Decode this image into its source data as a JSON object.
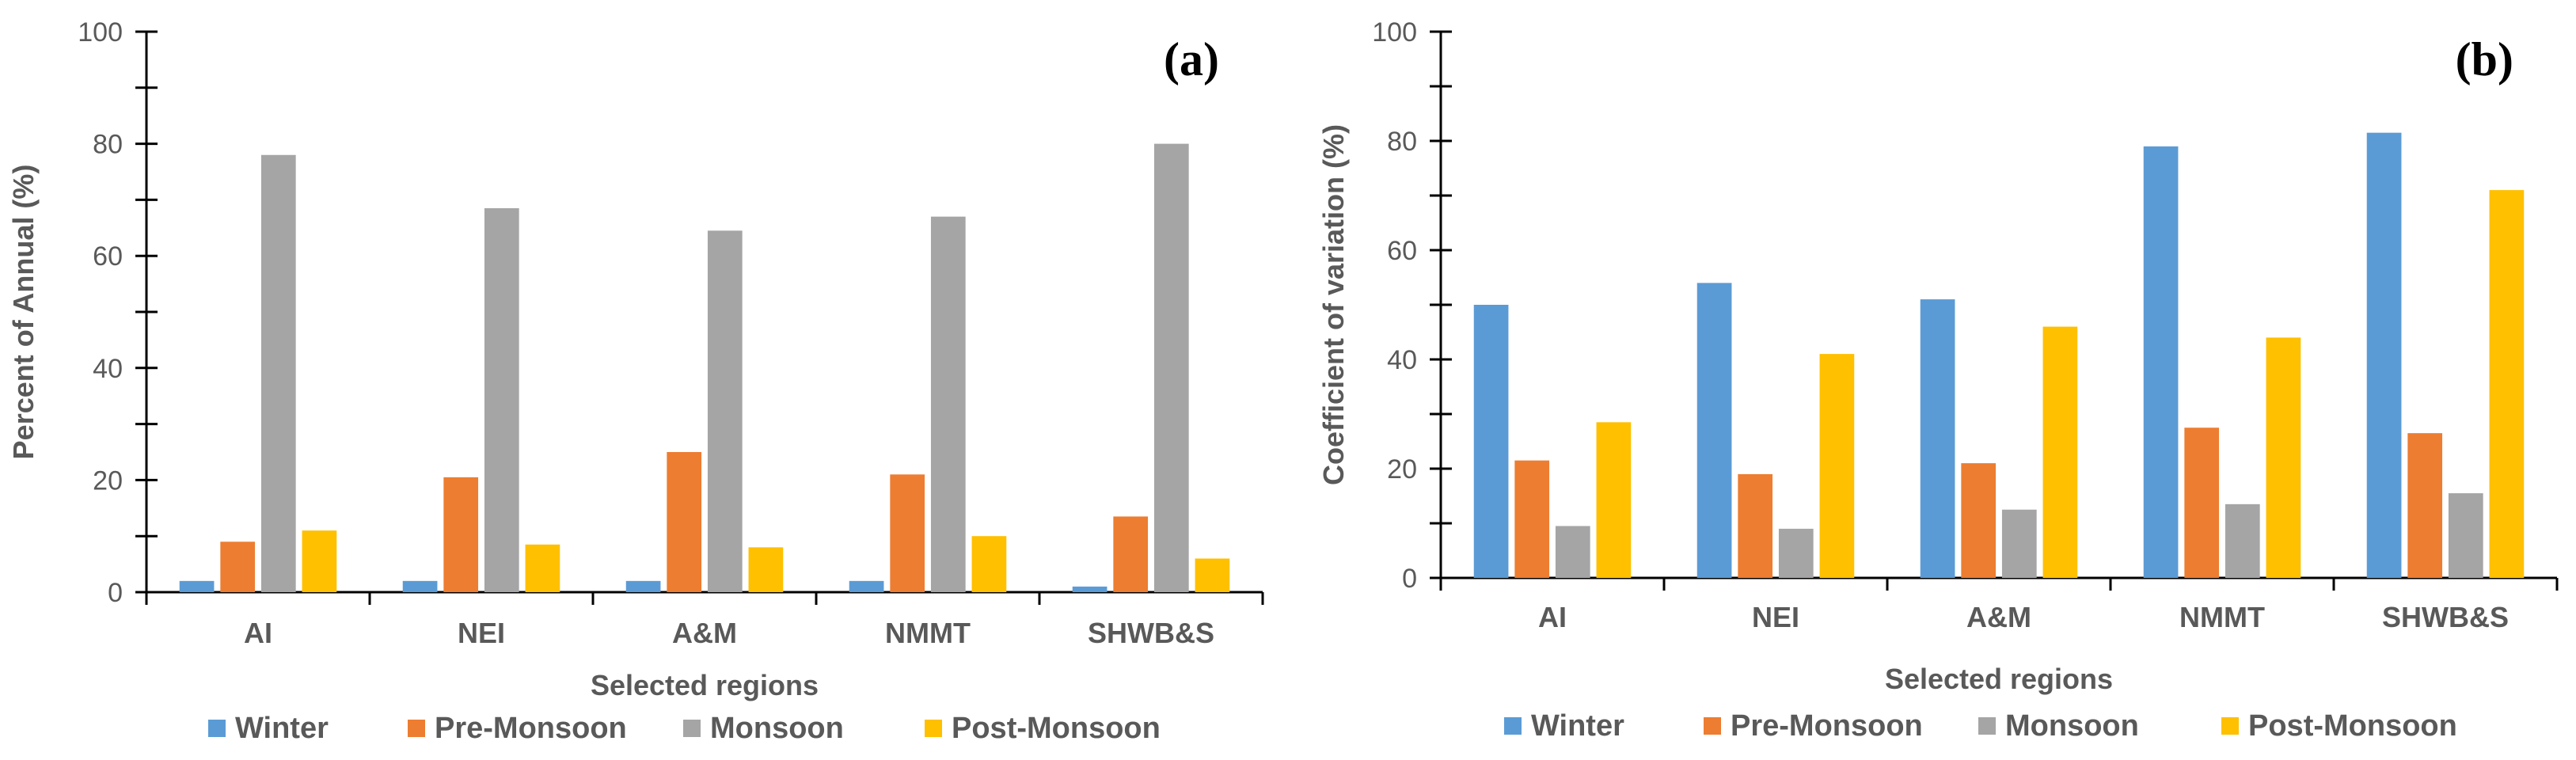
{
  "chart_data": [
    {
      "type": "bar",
      "panel_label": "(a)",
      "categories": [
        "AI",
        "NEI",
        "A&M",
        "NMMT",
        "SHWB&S"
      ],
      "series": [
        {
          "name": "Winter",
          "color": "#5B9BD5",
          "values": [
            2,
            2,
            2,
            2,
            1
          ]
        },
        {
          "name": "Pre-Monsoon",
          "color": "#ED7D31",
          "values": [
            9,
            20.5,
            25,
            21,
            13.5
          ]
        },
        {
          "name": "Monsoon",
          "color": "#A5A5A5",
          "values": [
            78,
            68.5,
            64.5,
            67,
            80
          ]
        },
        {
          "name": "Post-Monsoon",
          "color": "#FFC000",
          "values": [
            11,
            8.5,
            8,
            10,
            6
          ]
        }
      ],
      "xlabel": "Selected regions",
      "ylabel": "Percent of Annual (%)",
      "ylim": [
        0,
        100
      ],
      "yticks": [
        0,
        20,
        40,
        60,
        80,
        100
      ],
      "legend_position": "bottom",
      "grid": false
    },
    {
      "type": "bar",
      "panel_label": "(b)",
      "categories": [
        "AI",
        "NEI",
        "A&M",
        "NMMT",
        "SHWB&S"
      ],
      "series": [
        {
          "name": "Winter",
          "color": "#5B9BD5",
          "values": [
            50,
            54,
            51,
            79,
            81.5
          ]
        },
        {
          "name": "Pre-Monsoon",
          "color": "#ED7D31",
          "values": [
            21.5,
            19,
            21,
            27.5,
            26.5
          ]
        },
        {
          "name": "Monsoon",
          "color": "#A5A5A5",
          "values": [
            9.5,
            9,
            12.5,
            13.5,
            15.5
          ]
        },
        {
          "name": "Post-Monsoon",
          "color": "#FFC000",
          "values": [
            28.5,
            41,
            46,
            44,
            71
          ]
        }
      ],
      "xlabel": "Selected regions",
      "ylabel": "Coefficient of variation (%)",
      "ylim": [
        0,
        100
      ],
      "yticks": [
        0,
        20,
        40,
        60,
        80,
        100
      ],
      "legend_position": "bottom",
      "grid": false
    }
  ]
}
